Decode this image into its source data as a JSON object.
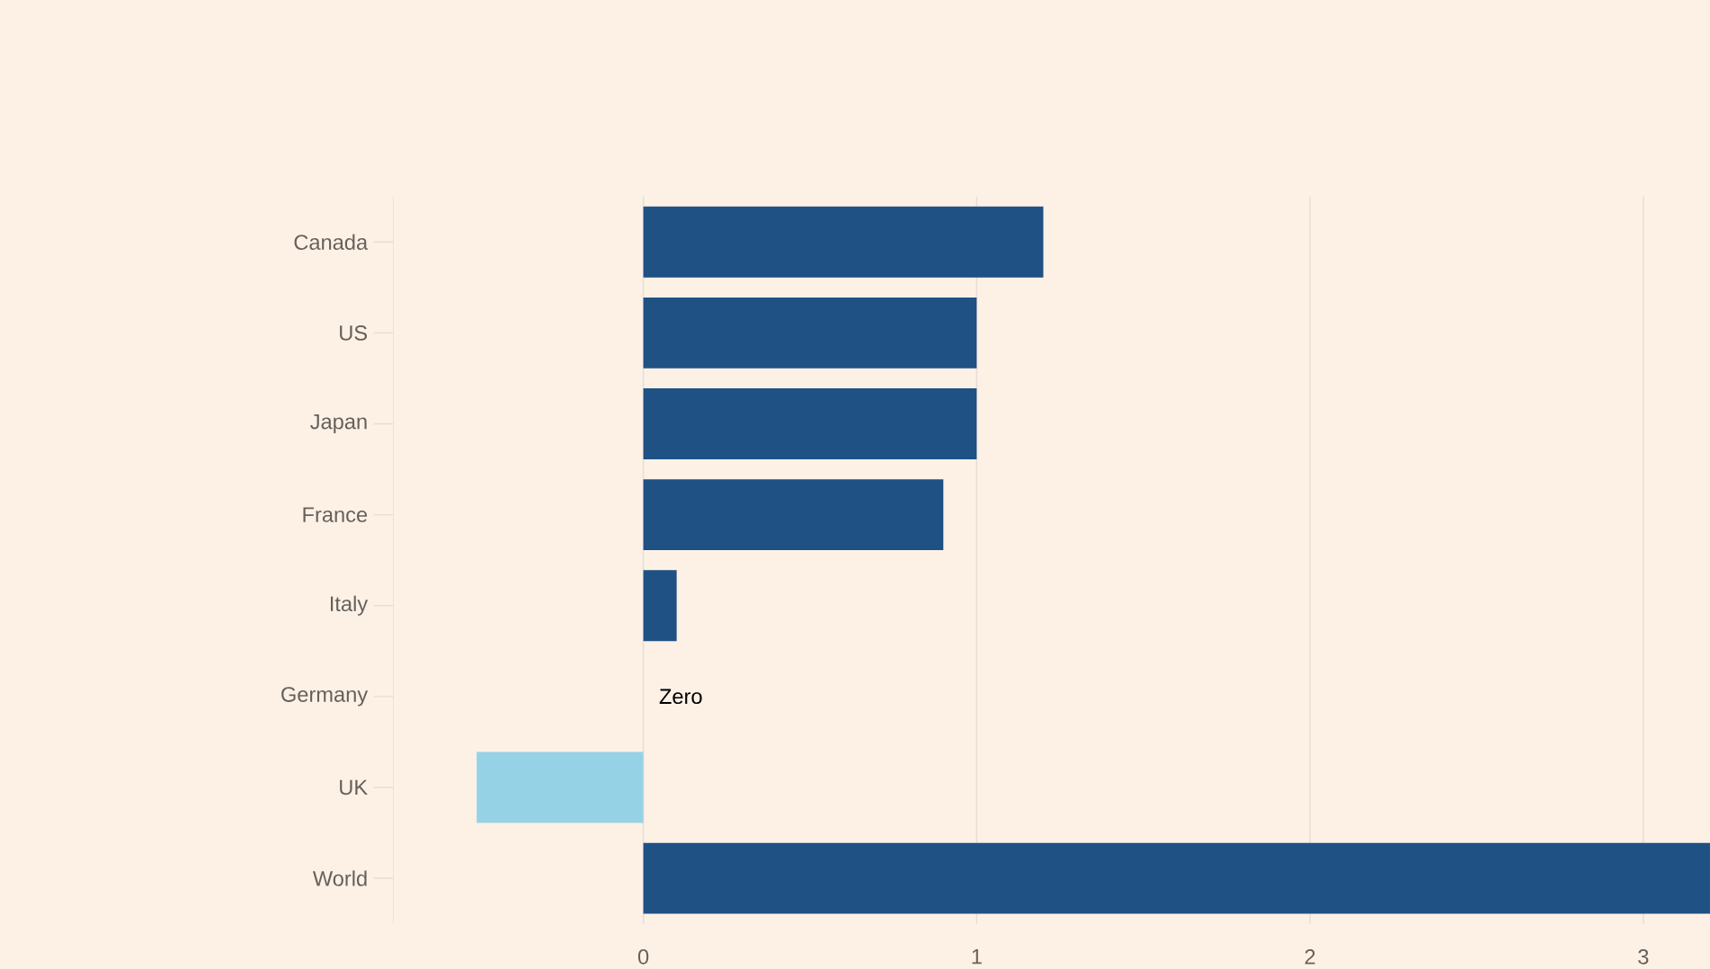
{
  "chart_data": {
    "type": "bar",
    "orientation": "horizontal",
    "categories": [
      "Canada",
      "US",
      "Japan",
      "France",
      "Italy",
      "Germany",
      "UK",
      "World"
    ],
    "values": [
      1.2,
      1.0,
      1.0,
      0.9,
      0.1,
      0,
      -0.5,
      3.2
    ],
    "colors": [
      "#1f5185",
      "#1f5185",
      "#1f5185",
      "#1f5185",
      "#1f5185",
      "#1f5185",
      "#96d2e6",
      "#1f5185"
    ],
    "xlim": [
      -0.75,
      3.2
    ],
    "xticks": [
      0,
      1,
      2,
      3
    ],
    "grid": "x",
    "annotations": [
      {
        "text": "Zero",
        "x": 0,
        "y": "Germany"
      }
    ]
  }
}
